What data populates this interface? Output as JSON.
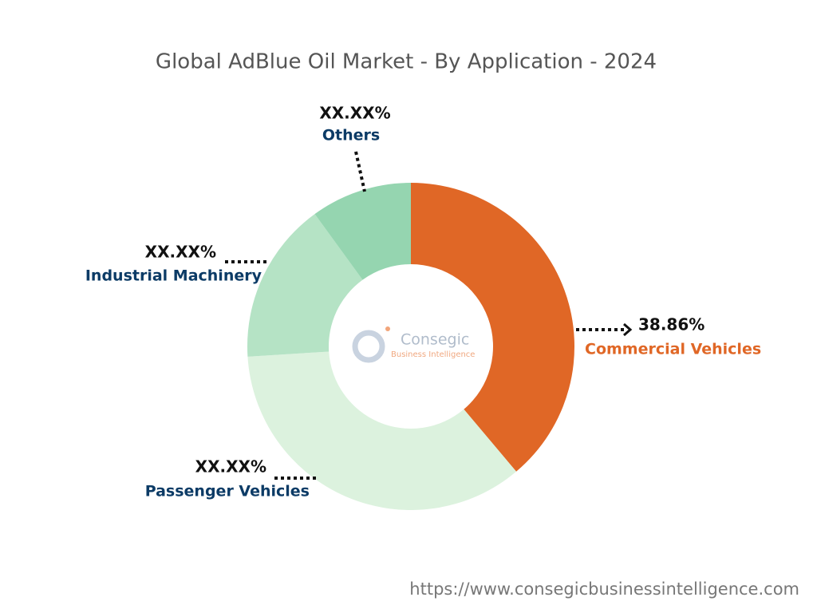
{
  "chart_data": {
    "type": "donut",
    "title": "Global AdBlue Oil Market - By Application - 2024",
    "categories": [
      "Commercial Vehicles",
      "Passenger Vehicles",
      "Industrial Machinery",
      "Others"
    ],
    "values": [
      38.86,
      35.14,
      16,
      10
    ],
    "value_labels": [
      "38.86%",
      "XX.XX%",
      "XX.XX%",
      "XX.XX%"
    ],
    "colors": [
      "#e06726",
      "#dcf2de",
      "#b5e3c5",
      "#95d5b0"
    ],
    "logo": {
      "name": "Consegic",
      "tagline": "Business Intelligence"
    },
    "source": "https://www.consegicbusinessintelligence.com"
  }
}
